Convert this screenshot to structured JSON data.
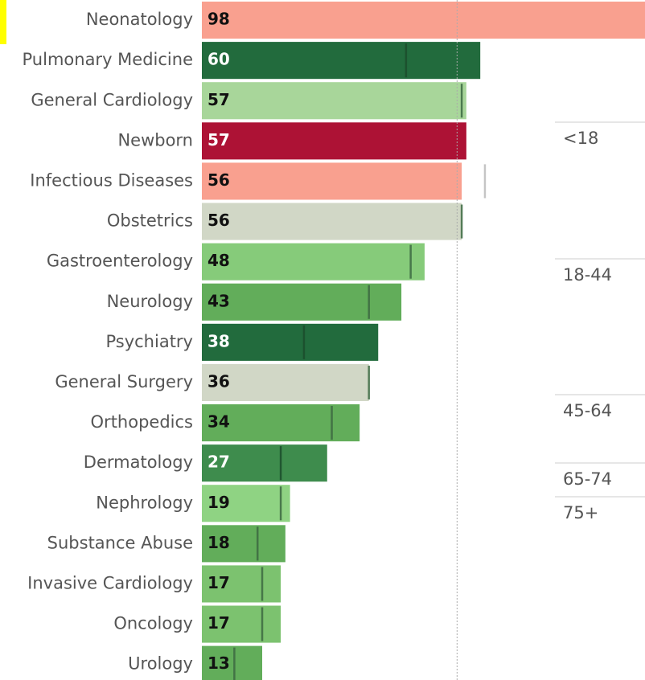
{
  "chart_data": {
    "type": "bar",
    "orientation": "horizontal",
    "categories": [
      "Neonatology",
      "Pulmonary Medicine",
      "General Cardiology",
      "Newborn",
      "Infectious Diseases",
      "Obstetrics",
      "Gastroenterology",
      "Neurology",
      "Psychiatry",
      "General Surgery",
      "Orthopedics",
      "Dermatology",
      "Nephrology",
      "Substance Abuse",
      "Invasive Cardiology",
      "Oncology",
      "Urology"
    ],
    "values": [
      98,
      60,
      57,
      57,
      56,
      56,
      48,
      43,
      38,
      36,
      34,
      27,
      19,
      18,
      17,
      17,
      13
    ],
    "targets": [
      null,
      44,
      56,
      null,
      61,
      56,
      45,
      36,
      22,
      36,
      28,
      17,
      17,
      12,
      13,
      13,
      7
    ],
    "colors": [
      "#f9a08f",
      "#226b3d",
      "#a8d69a",
      "#ad1235",
      "#f9a08f",
      "#d1d7c6",
      "#86cb7a",
      "#62ad5a",
      "#226b3d",
      "#d1d7c6",
      "#62ad5a",
      "#3e8c4d",
      "#8fd383",
      "#62ad5a",
      "#7cc26f",
      "#7cc26f",
      "#62ad5a"
    ],
    "reference_value": 55,
    "xlim": [
      0,
      95.5
    ],
    "age_groups": [
      "<18",
      "18-44",
      "45-64",
      "65-74",
      "75+"
    ]
  }
}
